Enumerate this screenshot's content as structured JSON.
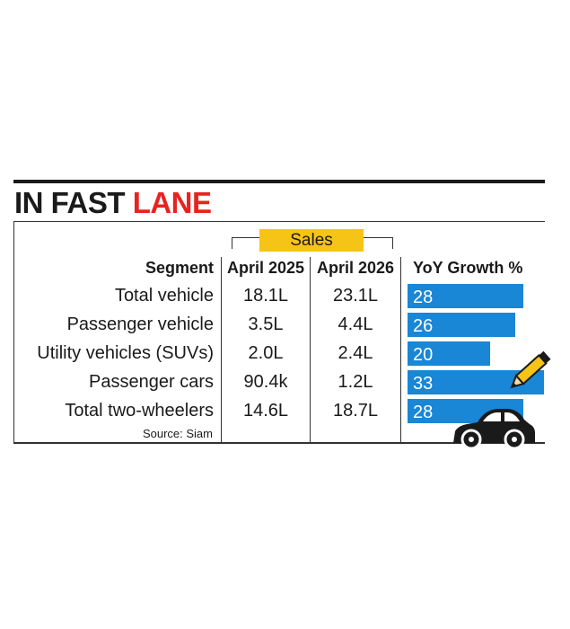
{
  "title": {
    "part1": "IN FAST",
    "part2": "LANE"
  },
  "colors": {
    "bar": "#1a86d6",
    "accent": "#e8231f",
    "sales_highlight": "#f6c417"
  },
  "sales_label": "Sales",
  "headers": {
    "segment": "Segment",
    "col1": "April 2025",
    "col2": "April 2026",
    "growth": "YoY Growth %"
  },
  "source": "Source: Siam",
  "chart_data": {
    "type": "table",
    "title": "IN FAST LANE",
    "columns": [
      "Segment",
      "April 2025",
      "April 2026",
      "YoY Growth %"
    ],
    "rows": [
      {
        "segment": "Total vehicle",
        "april_2025": "18.1L",
        "april_2026": "23.1L",
        "growth": 28
      },
      {
        "segment": "Passenger vehicle",
        "april_2025": "3.5L",
        "april_2026": "4.4L",
        "growth": 26
      },
      {
        "segment": "Utility vehicles (SUVs)",
        "april_2025": "2.0L",
        "april_2026": "2.4L",
        "growth": 20
      },
      {
        "segment": "Passenger cars",
        "april_2025": "90.4k",
        "april_2026": "1.2L",
        "growth": 33
      },
      {
        "segment": "Total two-wheelers",
        "april_2025": "14.6L",
        "april_2026": "18.7L",
        "growth": 28
      }
    ],
    "bar_max": 33
  }
}
